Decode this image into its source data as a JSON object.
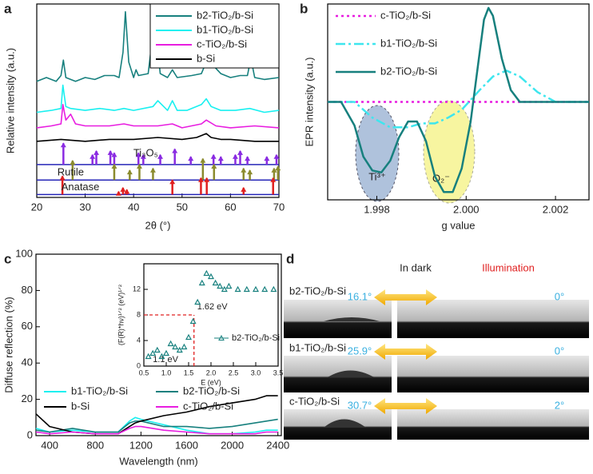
{
  "chart_data": [
    {
      "type": "line",
      "panel_label": "a",
      "xlabel": "2θ (°)",
      "ylabel": "Relative intensity (a.u.)",
      "xlim": [
        20,
        70
      ],
      "ylim": [
        0,
        100
      ],
      "xticks": [
        20,
        30,
        40,
        50,
        60,
        70
      ],
      "series": [
        {
          "name": "b2-TiO₂/b-Si",
          "color": "#17807e",
          "style": "solid",
          "x": [
            20,
            22,
            24,
            25,
            25.5,
            26,
            28,
            30,
            32,
            34,
            36,
            37,
            37.8,
            38.3,
            39,
            40,
            40.5,
            41,
            43,
            44,
            44.4,
            44.8,
            45.5,
            47,
            48,
            49,
            52,
            54,
            55,
            55.6,
            56.5,
            58,
            60,
            62,
            63.5,
            64.2,
            65,
            67,
            70
          ],
          "values": [
            60,
            62,
            60,
            63,
            71,
            62,
            60,
            62,
            61,
            63,
            63,
            62,
            75,
            96,
            70,
            62,
            66,
            63,
            64,
            85,
            93,
            80,
            64,
            62,
            66,
            62,
            63,
            64,
            70,
            76,
            68,
            64,
            62,
            63,
            63,
            72,
            62,
            61,
            62
          ]
        },
        {
          "name": "b1-TiO₂/b-Si",
          "color": "#19f0f0",
          "style": "solid",
          "x": [
            20,
            23,
            25,
            25.4,
            26,
            27,
            30,
            33,
            36,
            38,
            40,
            44,
            45,
            47,
            48,
            49,
            51,
            54,
            55,
            56,
            58,
            61,
            64,
            67,
            70
          ],
          "values": [
            44,
            45,
            46,
            58,
            47,
            46,
            45,
            46,
            45,
            46,
            45,
            47,
            50,
            45,
            50,
            45,
            45,
            48,
            51,
            47,
            45,
            45,
            46,
            44,
            45
          ]
        },
        {
          "name": "c-TiO₂/b-Si",
          "color": "#e81ee0",
          "style": "solid",
          "x": [
            20,
            23,
            25,
            25.4,
            26,
            27,
            28,
            30,
            35,
            38,
            40,
            45,
            48,
            50,
            54,
            55,
            57,
            60,
            65,
            70
          ],
          "values": [
            36,
            37,
            38,
            48,
            40,
            43,
            38,
            37,
            37,
            38,
            37,
            37,
            38,
            36,
            38,
            40,
            37,
            36,
            37,
            36
          ]
        },
        {
          "name": "b-Si",
          "color": "#000000",
          "style": "solid",
          "x": [
            20,
            25,
            30,
            35,
            40,
            45,
            50,
            53,
            55,
            56,
            58,
            60,
            65,
            70
          ],
          "values": [
            29,
            30,
            29,
            30,
            30,
            31,
            30,
            31,
            33,
            31,
            30,
            30,
            29,
            29
          ]
        }
      ],
      "references": [
        {
          "name": "Ti₃O₅",
          "color": "#8a2be2",
          "baseline_color": "#2626b8",
          "baseline": 17,
          "x": [
            25.5,
            31.5,
            32.3,
            35.2,
            36,
            41,
            42,
            45.5,
            48.5,
            51.8,
            56.5,
            58,
            61,
            62,
            63.5,
            67.5,
            69.5
          ],
          "values": [
            28,
            22,
            24,
            24,
            23,
            23,
            22,
            22,
            25,
            21,
            22,
            21,
            22,
            24,
            21,
            21,
            22
          ]
        },
        {
          "name": "Rutile",
          "color": "#8b8b2e",
          "baseline_color": "#2626b8",
          "baseline": 9,
          "x": [
            27.4,
            36,
            39.2,
            41.2,
            44,
            54.3,
            56.6,
            62.7,
            64,
            69,
            69.8
          ],
          "values": [
            19,
            17,
            14,
            17,
            15,
            20,
            17,
            15,
            14,
            15,
            16
          ]
        },
        {
          "name": "Anatase",
          "color": "#e02020",
          "baseline_color": "#2626b8",
          "baseline": 1.5,
          "x": [
            25.3,
            36.9,
            37.8,
            38.6,
            48,
            53.9,
            55.1,
            62.7,
            68.8
          ],
          "values": [
            11,
            3,
            5,
            4,
            9,
            10,
            10,
            5,
            10
          ]
        }
      ]
    },
    {
      "type": "line",
      "panel_label": "b",
      "xlabel": "g value",
      "ylabel": "EPR intensity (a.u.)",
      "xlim": [
        1.9969,
        2.00275
      ],
      "ylim": [
        0,
        100
      ],
      "xticks": [
        1.998,
        {
          "value": 2,
          "label": "2.000"
        },
        2.002
      ],
      "series": [
        {
          "name": "c-TiO₂/b-Si",
          "color": "#e81ee0",
          "style": "dotted",
          "x": [
            1.9969,
            2.00275
          ],
          "values": [
            50,
            50
          ]
        },
        {
          "name": "b1-TiO₂/b-Si",
          "color": "#3ee6ee",
          "style": "dashdot",
          "x": [
            1.9969,
            1.9975,
            1.9979,
            1.9983,
            1.9987,
            1.999,
            1.9993,
            1.9996,
            1.9999,
            2.0003,
            2.0006,
            2.0009,
            2.0012,
            2.0016,
            2.002,
            2.00275
          ],
          "values": [
            50,
            50,
            42,
            37,
            37,
            39,
            39,
            42,
            46,
            56,
            63,
            66,
            63,
            55,
            50,
            50
          ]
        },
        {
          "name": "b2-TiO₂/b-Si",
          "color": "#17807e",
          "style": "solid",
          "x": [
            1.9969,
            1.9972,
            1.9975,
            1.9977,
            1.9979,
            1.9981,
            1.9983,
            1.9985,
            1.9987,
            1.9989,
            1.9991,
            1.9993,
            1.9995,
            1.9997,
            1.9999,
            2.0001,
            2.0003,
            2.0004,
            2.0005,
            2.0006,
            2.0008,
            2.001,
            2.0012,
            2.0015,
            2.00275
          ],
          "values": [
            50,
            50,
            38,
            22,
            15,
            14,
            20,
            32,
            40,
            40,
            30,
            12,
            4,
            4,
            16,
            40,
            75,
            92,
            98,
            94,
            72,
            56,
            50,
            50,
            50
          ]
        }
      ],
      "annotations": [
        "Ti³⁺",
        "O₂⁻"
      ]
    },
    {
      "type": "line",
      "panel_label": "c",
      "xlabel": "Wavelength (nm)",
      "ylabel": "Diffuse reflection (%)",
      "xlim": [
        280,
        2430
      ],
      "ylim": [
        0,
        100
      ],
      "xticks": [
        400,
        800,
        1200,
        1600,
        2000,
        2400
      ],
      "yticks": [
        0,
        20,
        40,
        60,
        80,
        100
      ],
      "series": [
        {
          "name": "b1-TiO₂/b-Si",
          "color": "#19f0f0",
          "style": "solid",
          "x": [
            280,
            400,
            600,
            800,
            1000,
            1100,
            1150,
            1200,
            1400,
            1600,
            1800,
            2000,
            2200,
            2300,
            2400
          ],
          "values": [
            4,
            2,
            3,
            2,
            2,
            8,
            10,
            9,
            6,
            3,
            1,
            1,
            2,
            3,
            3
          ]
        },
        {
          "name": "b2-TiO₂/b-Si",
          "color": "#17807e",
          "style": "solid",
          "x": [
            280,
            400,
            600,
            800,
            1000,
            1100,
            1150,
            1200,
            1400,
            1600,
            1800,
            2000,
            2200,
            2300,
            2400
          ],
          "values": [
            3,
            2,
            4,
            2,
            2,
            7,
            8,
            8,
            5,
            5,
            4,
            5,
            7,
            8,
            9
          ]
        },
        {
          "name": "b-Si",
          "color": "#000000",
          "style": "solid",
          "x": [
            280,
            400,
            600,
            800,
            1000,
            1100,
            1150,
            1200,
            1400,
            1600,
            1800,
            2000,
            2200,
            2300,
            2400
          ],
          "values": [
            12,
            5,
            2,
            1,
            1,
            5,
            7,
            8,
            11,
            13,
            16,
            18,
            20,
            22,
            22
          ]
        },
        {
          "name": "c-TiO₂/b-Si",
          "color": "#e81ee0",
          "style": "solid",
          "x": [
            280,
            400,
            600,
            800,
            1000,
            1100,
            1150,
            1200,
            1400,
            1600,
            1800,
            2000,
            2200,
            2300,
            2400
          ],
          "values": [
            2,
            1,
            2,
            1,
            1,
            4,
            5,
            5,
            3,
            2,
            1,
            1,
            1,
            2,
            2
          ]
        }
      ]
    },
    {
      "type": "scatter",
      "xlabel": "E (eV)",
      "ylabel": "(F(R)*hν)¹ᐟ² (eV)¹ᐟ²",
      "xlim": [
        0.5,
        3.5
      ],
      "ylim": [
        0,
        16
      ],
      "xticks": [
        0.5,
        {
          "value": 1,
          "label": "1.0"
        },
        1.5,
        {
          "value": 2,
          "label": "2.0"
        },
        2.5,
        {
          "value": 3,
          "label": "3.0"
        },
        3.5
      ],
      "yticks": [
        0,
        4,
        8,
        12
      ],
      "series": [
        {
          "name": "b2-TiO₂/b-Si",
          "color": "#17807e",
          "marker": "triangle",
          "x": [
            0.6,
            0.7,
            0.8,
            0.9,
            1.0,
            1.1,
            1.2,
            1.3,
            1.4,
            1.5,
            1.6,
            1.7,
            1.8,
            1.9,
            2.0,
            2.1,
            2.2,
            2.3,
            2.4,
            2.6,
            2.8,
            3.0,
            3.2,
            3.4
          ],
          "values": [
            1.5,
            2,
            2.5,
            1.5,
            2,
            3.5,
            3,
            2.5,
            3,
            4.5,
            7,
            10,
            13,
            14.5,
            14,
            13,
            12.5,
            12,
            12.5,
            12,
            12,
            12,
            12,
            12
          ]
        }
      ],
      "guide": {
        "x": 1.62,
        "y": 8,
        "color": "#e02020"
      },
      "annotations": [
        "1.62 eV",
        "1.1 eV"
      ]
    }
  ],
  "panel_d": {
    "panel_label": "d",
    "columns": [
      "In dark",
      "Illumination"
    ],
    "rows": [
      {
        "name": "b2-TiO₂/b-Si",
        "dark_angle": "16.1°",
        "light_angle": "0°"
      },
      {
        "name": "b1-TiO₂/b-Si",
        "dark_angle": "25.9°",
        "light_angle": "0°"
      },
      {
        "name": "c-TiO₂/b-Si",
        "dark_angle": "30.7°",
        "light_angle": "2°"
      }
    ]
  }
}
